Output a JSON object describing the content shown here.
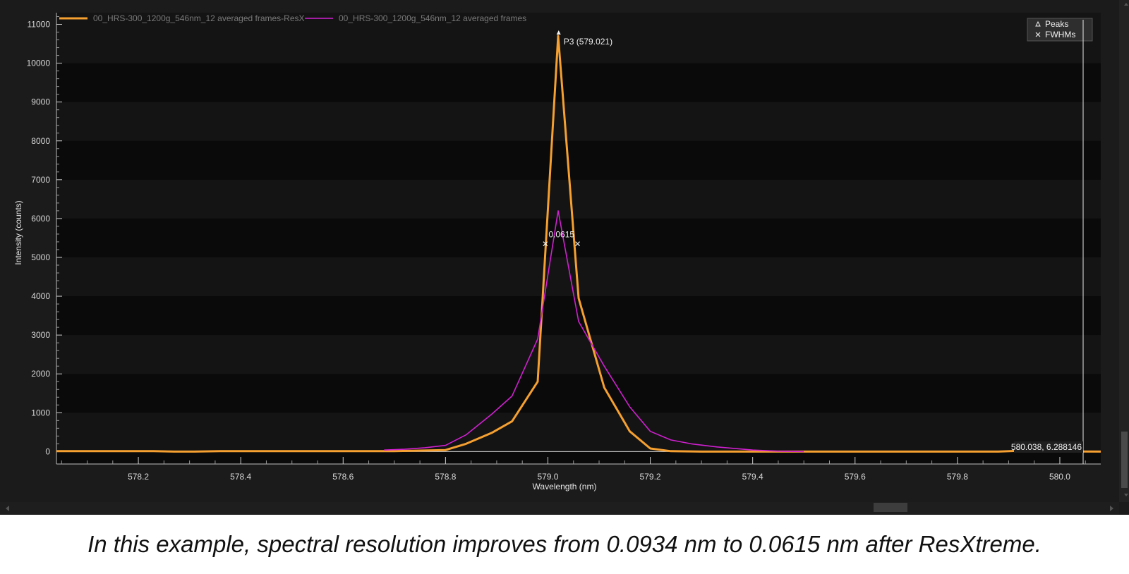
{
  "caption": "In this example, spectral resolution improves from 0.0934 nm to 0.0615 nm after ResXtreme.",
  "colors": {
    "resx": "#f5a030",
    "raw": "#d020d0",
    "background": "#0a0a0a",
    "band": "#141414"
  },
  "marker_legend": {
    "peaks": "Peaks",
    "fwhms": "FWHMs"
  },
  "cursor_readout": "580.038, 6.288146",
  "chart_data": {
    "type": "line",
    "title": "",
    "xlabel": "Wavelength (nm)",
    "ylabel": "Intensity (counts)",
    "xlim": [
      578.04,
      580.08
    ],
    "ylim": [
      -320,
      11300
    ],
    "x_ticks": [
      578.2,
      578.4,
      578.6,
      578.8,
      579.0,
      579.2,
      579.4,
      579.6,
      579.8,
      580.0
    ],
    "x_tick_labels": [
      "578.2",
      "578.4",
      "578.6",
      "578.8",
      "579.0",
      "579.2",
      "579.4",
      "579.6",
      "579.8",
      "580.0"
    ],
    "y_ticks": [
      0,
      1000,
      2000,
      3000,
      4000,
      5000,
      6000,
      7000,
      8000,
      9000,
      10000,
      11000
    ],
    "y_tick_labels": [
      "0",
      "1000",
      "2000",
      "3000",
      "4000",
      "5000",
      "6000",
      "7000",
      "8000",
      "9000",
      "10000",
      "11000"
    ],
    "grid": "alternating horizontal bands",
    "legend_position": "top-left",
    "series": [
      {
        "name": "00_HRS-300_1200g_546nm_12 averaged frames-ResX",
        "color": "#f5a030",
        "x": [
          578.04,
          578.1,
          578.2,
          578.23,
          578.27,
          578.31,
          578.36,
          578.5,
          578.7,
          578.8,
          578.84,
          578.89,
          578.93,
          578.98,
          579.02,
          579.06,
          579.11,
          579.16,
          579.2,
          579.24,
          579.3,
          579.4,
          579.5,
          579.6,
          579.7,
          579.8,
          579.88,
          579.92,
          579.97,
          580.08
        ],
        "y": [
          10,
          10,
          10,
          10,
          0,
          0,
          10,
          10,
          10,
          40,
          200,
          480,
          780,
          1800,
          10700,
          3950,
          1650,
          520,
          80,
          10,
          0,
          0,
          0,
          0,
          0,
          0,
          0,
          20,
          6,
          0
        ]
      },
      {
        "name": "00_HRS-300_1200g_546nm_12 averaged frames",
        "color": "#d020d0",
        "x": [
          578.68,
          578.72,
          578.76,
          578.8,
          578.84,
          578.89,
          578.93,
          578.98,
          579.02,
          579.06,
          579.11,
          579.16,
          579.2,
          579.24,
          579.28,
          579.33,
          579.4,
          579.45,
          579.5
        ],
        "y": [
          40,
          60,
          100,
          160,
          430,
          960,
          1430,
          2900,
          6200,
          3350,
          2200,
          1150,
          520,
          300,
          200,
          120,
          40,
          10,
          0
        ]
      }
    ],
    "peak_annotation": {
      "label": "P3 (579.021)",
      "x": 579.021,
      "y": 10700
    },
    "fwhm_annotation": {
      "label": "0.0615",
      "x1": 578.995,
      "x2": 579.058,
      "y": 5350
    }
  }
}
